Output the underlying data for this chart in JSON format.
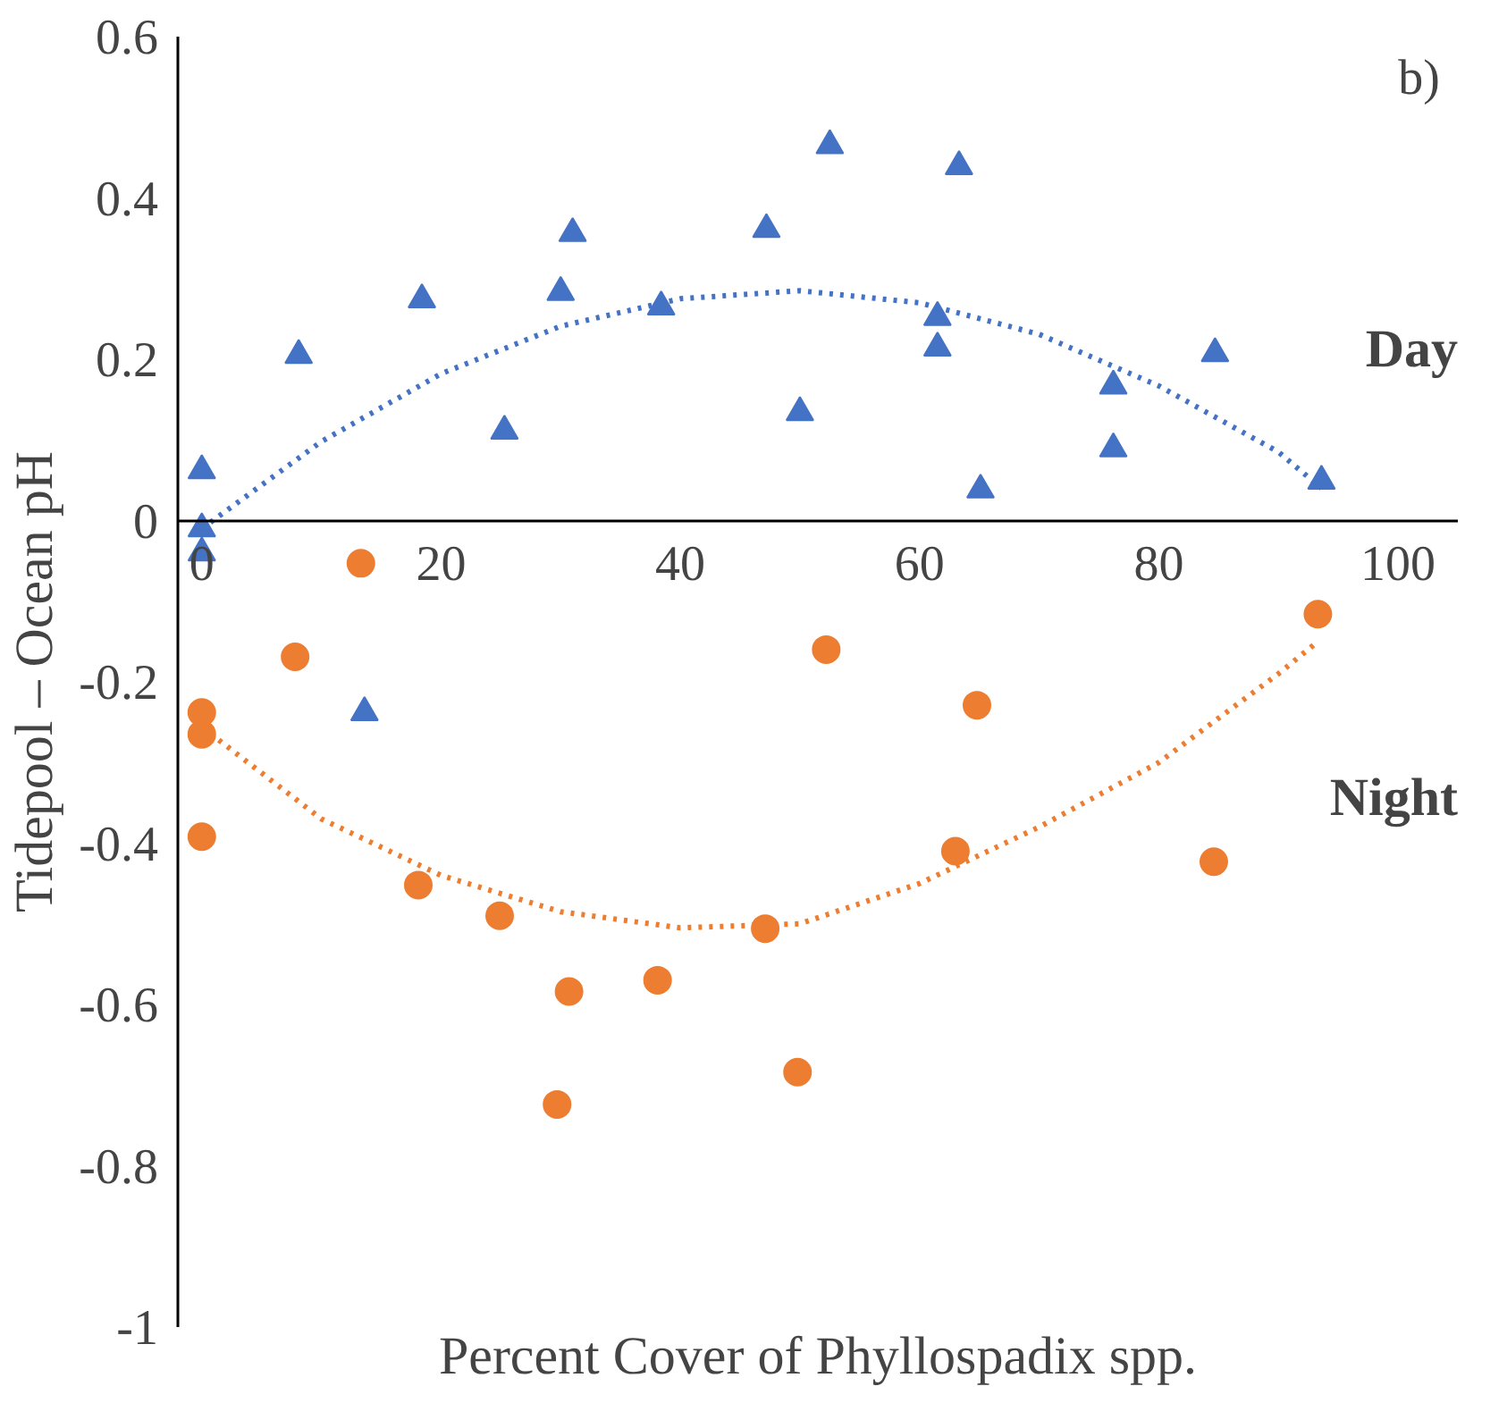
{
  "chart_data": {
    "type": "scatter",
    "xlabel": "Percent Cover of Phyllospadix spp.",
    "ylabel": "Tidepool – Ocean pH",
    "annotations": [
      "b)"
    ],
    "xlim": [
      -2,
      105
    ],
    "ylim": [
      -1,
      0.6
    ],
    "xticks": [
      0,
      20,
      40,
      60,
      80,
      100
    ],
    "yticks": [
      -1,
      -0.8,
      -0.6,
      -0.4,
      -0.2,
      0,
      0.2,
      0.4,
      0.6
    ],
    "grid": false,
    "series": [
      {
        "name": "Day",
        "marker": "triangle",
        "color": "#4472c4",
        "x": [
          0,
          0,
          0,
          8.1,
          18.4,
          25.3,
          30,
          31,
          38.4,
          13.6,
          47.2,
          50,
          52.5,
          61.5,
          61.5,
          63.3,
          65.1,
          76.2,
          76.2,
          84.7,
          93.6
        ],
        "values": [
          0.062,
          -0.01,
          -0.04,
          0.205,
          0.274,
          0.111,
          0.283,
          0.356,
          0.265,
          -0.238,
          0.361,
          0.134,
          0.465,
          0.214,
          0.252,
          0.439,
          0.038,
          0.167,
          0.089,
          0.207,
          0.049
        ]
      },
      {
        "name": "Night",
        "marker": "circle",
        "color": "#ed7d31",
        "x": [
          0,
          0,
          0,
          13.3,
          7.8,
          18.1,
          24.9,
          30.7,
          29.7,
          38.1,
          47.1,
          49.8,
          52.2,
          64.8,
          63,
          84.6,
          93.3
        ],
        "values": [
          -0.238,
          -0.265,
          -0.392,
          -0.053,
          -0.169,
          -0.452,
          -0.49,
          -0.584,
          -0.724,
          -0.57,
          -0.506,
          -0.684,
          -0.16,
          -0.229,
          -0.41,
          -0.423,
          -0.116
        ]
      },
      {
        "type": "line",
        "line_style": "dotted",
        "color": "#4472c4",
        "x": [
          0,
          10,
          20,
          30,
          40,
          50,
          60,
          70,
          80,
          90,
          93.6
        ],
        "values": [
          -0.01,
          0.098,
          0.182,
          0.241,
          0.275,
          0.285,
          0.27,
          0.231,
          0.167,
          0.085,
          0.04
        ]
      },
      {
        "type": "line",
        "line_style": "dotted",
        "color": "#ed7d31",
        "x": [
          0,
          10,
          20,
          30,
          40,
          50,
          60,
          70,
          80,
          90,
          93.3
        ],
        "values": [
          -0.256,
          -0.37,
          -0.44,
          -0.485,
          -0.505,
          -0.5,
          -0.45,
          -0.38,
          -0.3,
          -0.19,
          -0.15
        ]
      }
    ]
  }
}
